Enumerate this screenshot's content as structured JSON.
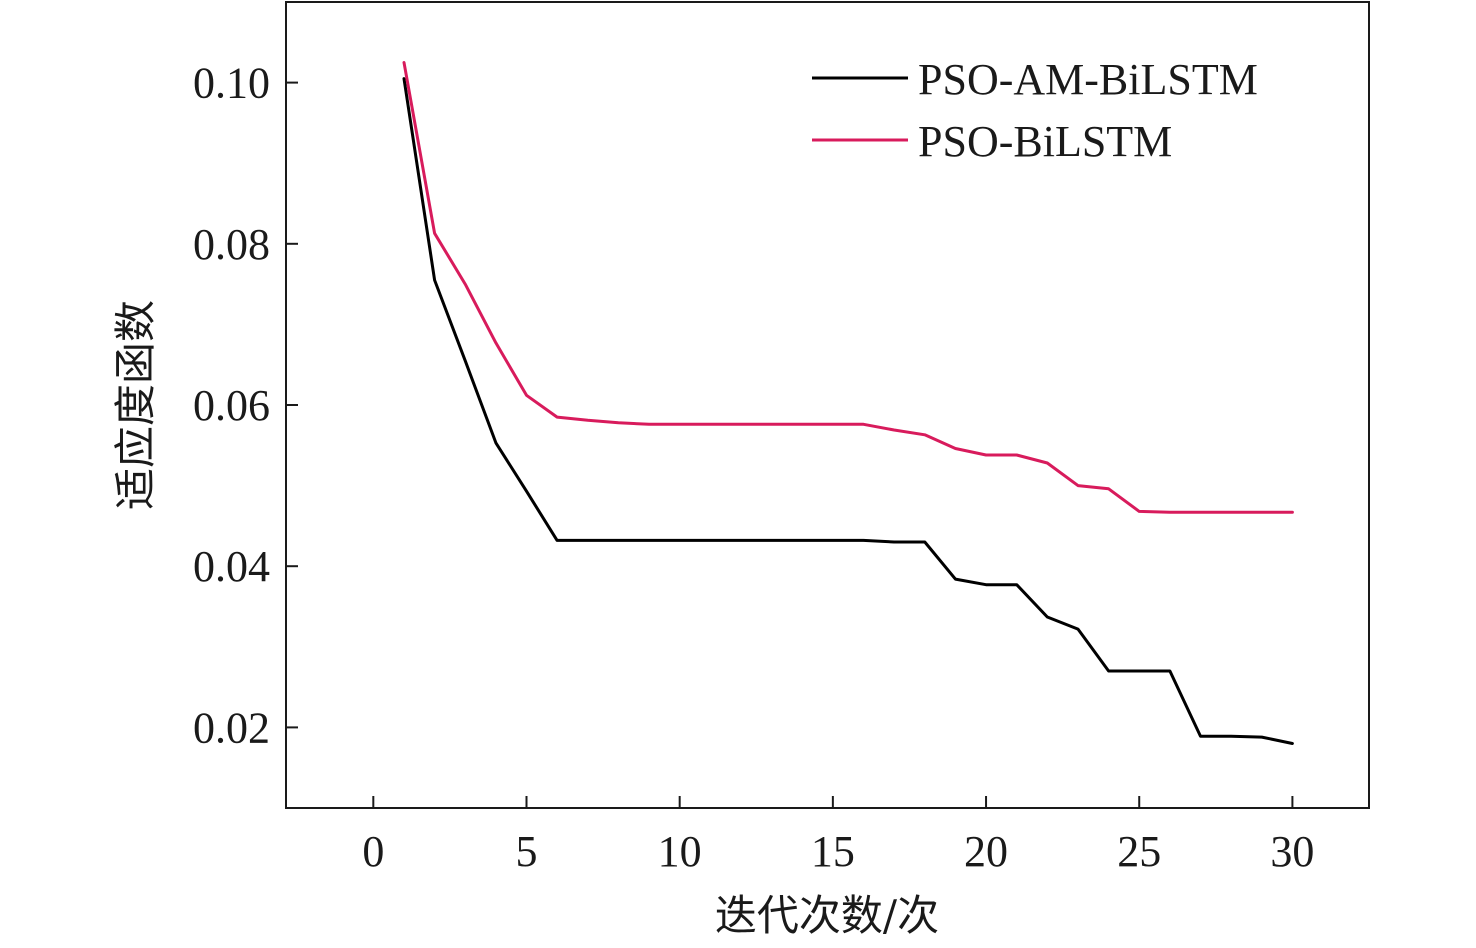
{
  "chart_data": {
    "type": "line",
    "xlabel": "迭代次数/次",
    "ylabel": "适应度函数",
    "xlim": [
      -2.85,
      32.5
    ],
    "ylim": [
      0.01,
      0.11
    ],
    "xticks": [
      0,
      5,
      10,
      15,
      20,
      25,
      30
    ],
    "xtick_labels": [
      "0",
      "5",
      "10",
      "15",
      "20",
      "25",
      "30"
    ],
    "yticks": [
      0.02,
      0.04,
      0.06,
      0.08,
      0.1
    ],
    "ytick_labels": [
      "0.02",
      "0.04",
      "0.06",
      "0.08",
      "0.10"
    ],
    "grid": false,
    "legend_position": "top-right",
    "x": [
      1,
      2,
      3,
      4,
      5,
      6,
      7,
      8,
      9,
      10,
      11,
      12,
      13,
      14,
      15,
      16,
      17,
      18,
      19,
      20,
      21,
      22,
      23,
      24,
      25,
      26,
      27,
      28,
      29,
      30
    ],
    "series": [
      {
        "name": "PSO-AM-BiLSTM",
        "color": "#000000",
        "values": [
          0.1005,
          0.0755,
          0.0655,
          0.0553,
          0.0493,
          0.0432,
          0.0432,
          0.0432,
          0.0432,
          0.0432,
          0.0432,
          0.0432,
          0.0432,
          0.0432,
          0.0432,
          0.0432,
          0.043,
          0.043,
          0.0384,
          0.0377,
          0.0377,
          0.0337,
          0.0322,
          0.027,
          0.027,
          0.027,
          0.0189,
          0.0189,
          0.0188,
          0.018
        ]
      },
      {
        "name": "PSO-BiLSTM",
        "color": "#d81b5c",
        "values": [
          0.1025,
          0.0813,
          0.075,
          0.0677,
          0.0612,
          0.0585,
          0.0581,
          0.0578,
          0.0576,
          0.0576,
          0.0576,
          0.0576,
          0.0576,
          0.0576,
          0.0576,
          0.0576,
          0.0569,
          0.0563,
          0.0546,
          0.0538,
          0.0538,
          0.0528,
          0.05,
          0.0496,
          0.0468,
          0.0467,
          0.0467,
          0.0467,
          0.0467,
          0.0467
        ]
      }
    ]
  }
}
